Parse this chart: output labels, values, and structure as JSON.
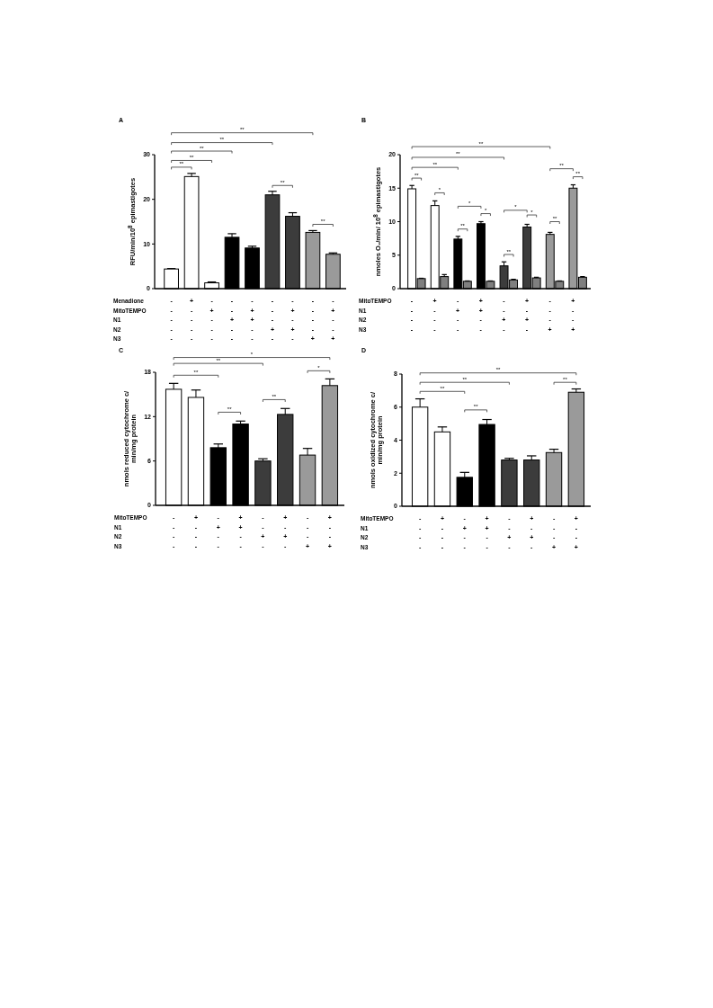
{
  "chart_data": [
    {
      "type": "bar",
      "title": "A",
      "ylabel": "RFU/min/10$^{8}$ epimastigotes",
      "xlabel": "Menadione\nMitoTEMPO\nN1\nN2\nN3",
      "categories": [
        "-\n-\n-\n-\n-",
        "+\n-\n-\n-\n-",
        "-\n+\n-\n-\n-",
        "-\n-\n+\n-\n-",
        "-\n+\n+\n-\n-",
        "-\n-\n-\n+\n-",
        "-\n+\n-\n+\n-",
        "-\n-\n-\n-\n+",
        "-\n+\n-\n-\n+"
      ],
      "ylim": [
        0,
        30
      ],
      "yticks": [
        0,
        10,
        20,
        30
      ],
      "series": [
        {
          "values": [
            4.4,
            25.1,
            1.3,
            11.5,
            9.1,
            21.0,
            16.2,
            12.6,
            7.7
          ],
          "errors": [
            0.1,
            0.7,
            0.2,
            0.8,
            0.4,
            0.8,
            0.8,
            0.4,
            0.3
          ],
          "colors": [
            "#ffffff",
            "#ffffff",
            "#ffffff",
            "#000000",
            "#000000",
            "#3c3c3c",
            "#3c3c3c",
            "#9a9a9a",
            "#9a9a9a"
          ]
        }
      ],
      "annotations": [
        "**",
        "**",
        "**",
        "**",
        "**",
        "**",
        "**"
      ]
    },
    {
      "type": "bar",
      "title": "B",
      "ylabel": "nmoles O₂/min/ 10$^{8}$ epimastigotes",
      "xlabel": "MitoTEMPO\nN1\nN2\nN3",
      "categories": [
        "-\n-\n-\n-",
        "+\n-\n-\n-",
        "-\n+\n-\n-",
        "+\n+\n-\n-",
        "-\n-\n+\n-",
        "+\n-\n+\n-",
        "-\n-\n-\n+",
        "+\n-\n-\n+"
      ],
      "ylim": [
        0,
        20
      ],
      "yticks": [
        0,
        5,
        10,
        15,
        20
      ],
      "series": [
        {
          "values": [
            14.9,
            12.4,
            7.4,
            9.7,
            3.4,
            9.2,
            8.1,
            15.0
          ],
          "errors": [
            0.5,
            0.7,
            0.4,
            0.3,
            0.6,
            0.4,
            0.3,
            0.5
          ],
          "colors": [
            "#ffffff",
            "#ffffff",
            "#000000",
            "#000000",
            "#3c3c3c",
            "#3c3c3c",
            "#9a9a9a",
            "#9a9a9a"
          ]
        },
        {
          "values": [
            1.5,
            1.8,
            1.1,
            1.1,
            1.3,
            1.6,
            1.1,
            1.7
          ],
          "errors": [
            0.05,
            0.3,
            0.05,
            0.05,
            0.1,
            0.1,
            0.05,
            0.1
          ],
          "colors": [
            "#7f7f7f",
            "#7f7f7f",
            "#7f7f7f",
            "#7f7f7f",
            "#7f7f7f",
            "#7f7f7f",
            "#7f7f7f",
            "#7f7f7f"
          ]
        }
      ],
      "annotations": [
        "**",
        "*",
        "**",
        "*",
        "*",
        "**",
        "*",
        "*",
        "**",
        "**",
        "**",
        "**",
        "**",
        "**"
      ]
    },
    {
      "type": "bar",
      "title": "C",
      "ylabel": "nmols reduced cytochrome c/\nmin/mg protein",
      "xlabel": "MitoTEMPO\nN1\nN2\nN3",
      "categories": [
        "-\n-\n-\n-",
        "+\n-\n-\n-",
        "-\n+\n-\n-",
        "+\n+\n-\n-",
        "-\n-\n+\n-",
        "+\n-\n+\n-",
        "-\n-\n-\n+",
        "+\n-\n-\n+"
      ],
      "ylim": [
        0,
        18
      ],
      "yticks": [
        0,
        6,
        12,
        18
      ],
      "series": [
        {
          "values": [
            15.7,
            14.6,
            7.8,
            11.0,
            6.0,
            12.3,
            6.8,
            16.2
          ],
          "errors": [
            0.8,
            1.0,
            0.5,
            0.4,
            0.3,
            0.8,
            0.9,
            0.9
          ],
          "colors": [
            "#ffffff",
            "#ffffff",
            "#000000",
            "#000000",
            "#3c3c3c",
            "#3c3c3c",
            "#9a9a9a",
            "#9a9a9a"
          ]
        }
      ],
      "annotations": [
        "**",
        "**",
        "*",
        "**",
        "**",
        "*"
      ]
    },
    {
      "type": "bar",
      "title": "D",
      "ylabel": "nmols oxidized cytochrome c/\nmin/mg protein",
      "xlabel": "MitoTEMPO\nN1\nN2\nN3",
      "categories": [
        "-\n-\n-\n-",
        "+\n-\n-\n-",
        "-\n+\n-\n-",
        "+\n+\n-\n-",
        "-\n-\n+\n-",
        "+\n-\n+\n-",
        "-\n-\n-\n+",
        "+\n-\n-\n+"
      ],
      "ylim": [
        0,
        8
      ],
      "yticks": [
        0,
        2,
        4,
        6,
        8
      ],
      "series": [
        {
          "values": [
            6.0,
            4.5,
            1.75,
            4.95,
            2.8,
            2.8,
            3.25,
            6.9
          ],
          "errors": [
            0.5,
            0.3,
            0.3,
            0.3,
            0.1,
            0.25,
            0.2,
            0.2
          ],
          "colors": [
            "#ffffff",
            "#ffffff",
            "#000000",
            "#000000",
            "#3c3c3c",
            "#3c3c3c",
            "#9a9a9a",
            "#9a9a9a"
          ]
        }
      ],
      "annotations": [
        "**",
        "**",
        "**",
        "**",
        "**"
      ]
    }
  ]
}
